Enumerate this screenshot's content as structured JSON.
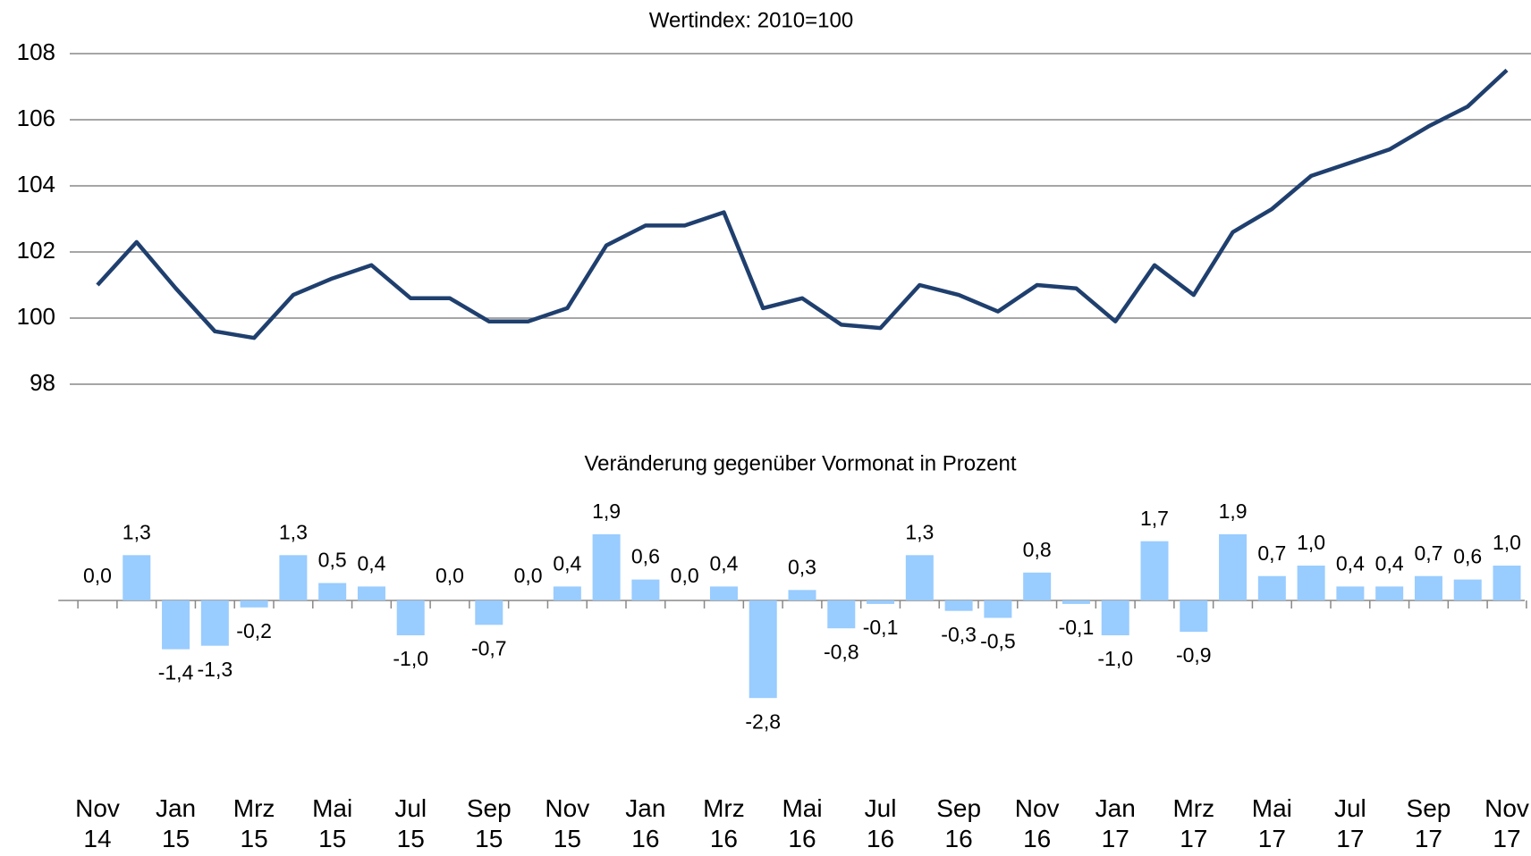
{
  "chart_data": [
    {
      "type": "line",
      "title": "Wertindex: 2010=100",
      "values": [
        101.0,
        102.3,
        100.9,
        99.6,
        99.4,
        100.7,
        101.2,
        101.6,
        100.6,
        100.6,
        99.9,
        99.9,
        100.3,
        102.2,
        102.8,
        102.8,
        103.2,
        100.3,
        100.6,
        99.8,
        99.7,
        101.0,
        100.7,
        100.2,
        101.0,
        100.9,
        99.9,
        101.6,
        100.7,
        102.6,
        103.3,
        104.3,
        104.7,
        105.1,
        105.8,
        106.4,
        107.5
      ],
      "color": "#1f3f6e",
      "ylim": [
        98,
        108
      ],
      "yticks": [
        98,
        100,
        102,
        104,
        106,
        108
      ],
      "grid": true
    },
    {
      "type": "bar",
      "title": "Veränderung gegenüber Vormonat in Prozent",
      "categories": [
        "Nov 14",
        null,
        "Jan 15",
        null,
        "Mrz 15",
        null,
        "Mai 15",
        null,
        "Jul 15",
        null,
        "Sep 15",
        null,
        "Nov 15",
        null,
        "Jan 16",
        null,
        "Mrz 16",
        null,
        "Mai 16",
        null,
        "Jul 16",
        null,
        "Sep 16",
        null,
        "Nov 16",
        null,
        "Jan 17",
        null,
        "Mrz 17",
        null,
        "Mai 17",
        null,
        "Jul 17",
        null,
        "Sep 17",
        null,
        "Nov 17"
      ],
      "values": [
        0.0,
        1.3,
        -1.4,
        -1.3,
        -0.2,
        1.3,
        0.5,
        0.4,
        -1.0,
        0.0,
        -0.7,
        0.0,
        0.4,
        1.9,
        0.6,
        0.0,
        0.4,
        -2.8,
        0.3,
        -0.8,
        -0.1,
        1.3,
        -0.3,
        -0.5,
        0.8,
        -0.1,
        -1.0,
        1.7,
        -0.9,
        1.9,
        0.7,
        1.0,
        0.4,
        0.4,
        0.7,
        0.6,
        1.0
      ],
      "value_labels": [
        "0,0",
        "1,3",
        "-1,4",
        "-1,3",
        "-0,2",
        "1,3",
        "0,5",
        "0,4",
        "-1,0",
        "0,0",
        "-0,7",
        "0,0",
        "0,4",
        "1,9",
        "0,6",
        "0,0",
        "0,4",
        "-2,8",
        "0,3",
        "-0,8",
        "-0,1",
        "1,3",
        "-0,3",
        "-0,5",
        "0,8",
        "-0,1",
        "-1,0",
        "1,7",
        "-0,9",
        "1,9",
        "0,7",
        "1,0",
        "0,4",
        "0,4",
        "0,7",
        "0,6",
        "1,0"
      ],
      "color": "#99ccff"
    }
  ]
}
